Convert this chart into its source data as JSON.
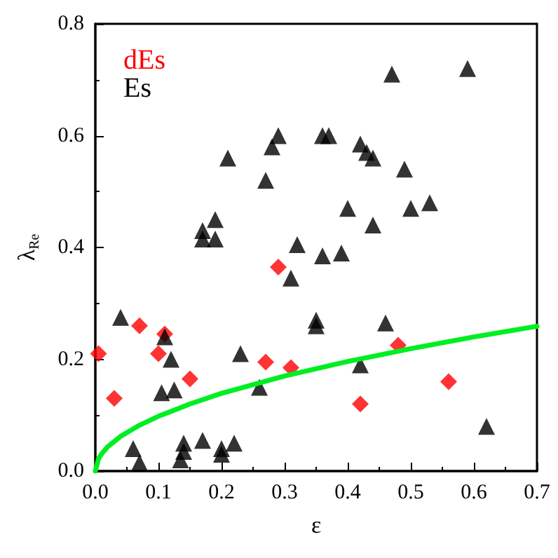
{
  "chart_data": {
    "type": "scatter",
    "xlabel": "ε",
    "ylabel": "λ$_{Re}$",
    "xlim": [
      0,
      0.7
    ],
    "ylim": [
      0,
      0.8
    ],
    "xticks": [
      {
        "value": 0,
        "label": "0.0"
      },
      0.1,
      0.2,
      0.3,
      0.4,
      0.5,
      0.6,
      0.7
    ],
    "yticks": [
      {
        "value": 0,
        "label": "0.0"
      },
      0.2,
      0.4,
      0.6,
      0.8
    ],
    "legend": "top left",
    "grid": false,
    "series": [
      {
        "name": "dEs",
        "color": "#ff0000",
        "marker": "diamond",
        "x": [
          0.005,
          0.03,
          0.07,
          0.1,
          0.11,
          0.15,
          0.27,
          0.29,
          0.31,
          0.42,
          0.48,
          0.56
        ],
        "values": [
          0.21,
          0.13,
          0.26,
          0.21,
          0.245,
          0.165,
          0.195,
          0.365,
          0.185,
          0.12,
          0.225,
          0.16
        ]
      },
      {
        "name": "Es",
        "color": "#000000",
        "marker": "triangle",
        "x": [
          0.04,
          0.06,
          0.07,
          0.105,
          0.11,
          0.12,
          0.125,
          0.135,
          0.14,
          0.14,
          0.17,
          0.2,
          0.2,
          0.22,
          0.17,
          0.17,
          0.19,
          0.19,
          0.21,
          0.23,
          0.26,
          0.27,
          0.28,
          0.29,
          0.31,
          0.32,
          0.35,
          0.35,
          0.36,
          0.37,
          0.36,
          0.39,
          0.4,
          0.42,
          0.43,
          0.44,
          0.44,
          0.42,
          0.46,
          0.47,
          0.49,
          0.5,
          0.53,
          0.59,
          0.62
        ],
        "values": [
          0.275,
          0.04,
          0.015,
          0.14,
          0.24,
          0.2,
          0.145,
          0.02,
          0.05,
          0.035,
          0.055,
          0.04,
          0.03,
          0.05,
          0.43,
          0.415,
          0.45,
          0.415,
          0.56,
          0.21,
          0.15,
          0.52,
          0.58,
          0.6,
          0.345,
          0.405,
          0.27,
          0.26,
          0.6,
          0.6,
          0.385,
          0.39,
          0.47,
          0.585,
          0.57,
          0.56,
          0.44,
          0.19,
          0.265,
          0.71,
          0.54,
          0.47,
          0.48,
          0.72,
          0.08
        ]
      },
      {
        "type": "line",
        "color": "#00ee22",
        "marker": "none",
        "x": [
          0,
          0.005,
          0.01,
          0.02,
          0.04,
          0.07,
          0.1,
          0.15,
          0.2,
          0.3,
          0.4,
          0.5,
          0.6,
          0.7
        ],
        "values": [
          0,
          0.022,
          0.031,
          0.044,
          0.062,
          0.082,
          0.098,
          0.12,
          0.139,
          0.17,
          0.196,
          0.219,
          0.24,
          0.259
        ]
      }
    ]
  }
}
